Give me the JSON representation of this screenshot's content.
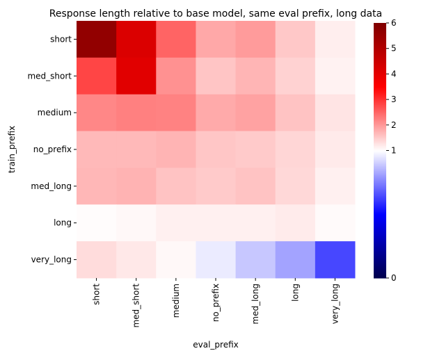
{
  "chart_data": {
    "type": "heatmap",
    "title": "Response length relative to base model, same eval prefix, long data",
    "xlabel": "eval_prefix",
    "ylabel": "train_prefix",
    "x_categories": [
      "short",
      "med_short",
      "medium",
      "no_prefix",
      "med_long",
      "long",
      "very_long"
    ],
    "y_categories": [
      "short",
      "med_short",
      "medium",
      "no_prefix",
      "med_long",
      "long",
      "very_long"
    ],
    "values": [
      [
        5.65,
        4.2,
        2.52,
        1.85,
        1.98,
        1.54,
        1.17
      ],
      [
        2.82,
        4.1,
        2.08,
        1.57,
        1.73,
        1.44,
        1.13
      ],
      [
        2.18,
        2.25,
        2.23,
        1.83,
        1.91,
        1.59,
        1.26
      ],
      [
        1.69,
        1.69,
        1.74,
        1.56,
        1.52,
        1.4,
        1.21
      ],
      [
        1.71,
        1.75,
        1.59,
        1.52,
        1.59,
        1.38,
        1.15
      ],
      [
        1.03,
        1.07,
        1.15,
        1.15,
        1.15,
        1.2,
        1.05
      ],
      [
        1.34,
        1.23,
        1.07,
        0.96,
        0.89,
        0.82,
        0.64
      ]
    ],
    "colormap": "seismic",
    "norm": {
      "vmin": 0,
      "vcenter": 1,
      "vmax": 6
    },
    "colorbar_ticks": [
      "0",
      "1",
      "2",
      "3",
      "4",
      "5",
      "6"
    ]
  }
}
